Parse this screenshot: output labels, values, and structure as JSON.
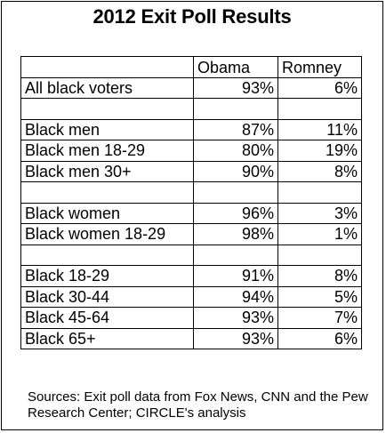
{
  "chart_data": {
    "type": "table",
    "title": "2012 Exit Poll Results",
    "columns": [
      "",
      "Obama",
      "Romney"
    ],
    "rows": [
      {
        "label": "All black voters",
        "obama": "93%",
        "romney": "6%"
      },
      {
        "label": "",
        "obama": "",
        "romney": ""
      },
      {
        "label": "Black men",
        "obama": "87%",
        "romney": "11%"
      },
      {
        "label": "Black men 18-29",
        "obama": "80%",
        "romney": "19%"
      },
      {
        "label": "Black men 30+",
        "obama": "90%",
        "romney": "8%"
      },
      {
        "label": "",
        "obama": "",
        "romney": ""
      },
      {
        "label": "Black women",
        "obama": "96%",
        "romney": "3%"
      },
      {
        "label": "Black women 18-29",
        "obama": "98%",
        "romney": "1%"
      },
      {
        "label": "",
        "obama": "",
        "romney": ""
      },
      {
        "label": "Black 18-29",
        "obama": "91%",
        "romney": "8%"
      },
      {
        "label": "Black 30-44",
        "obama": "94%",
        "romney": "5%"
      },
      {
        "label": "Black 45-64",
        "obama": "93%",
        "romney": "7%"
      },
      {
        "label": "Black 65+",
        "obama": "93%",
        "romney": "6%"
      }
    ],
    "source": "Sources: Exit poll data from Fox News, CNN and the Pew Research Center; CIRCLE's analysis"
  }
}
